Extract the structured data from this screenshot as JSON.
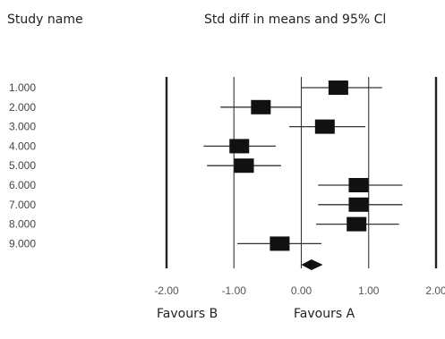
{
  "header": {
    "left": "Study name",
    "right": "Std diff in means and 95% Cl"
  },
  "footer": {
    "left": "Favours B",
    "right": "Favours A"
  },
  "chart_data": {
    "type": "forest",
    "x_ticks": [
      "-2.00",
      "-1.00",
      "0.00",
      "1.00",
      "2.00"
    ],
    "xlim": [
      -2,
      2
    ],
    "reference_lines": [
      -1,
      0,
      1
    ],
    "studies": [
      {
        "label": "1.000",
        "estimate": 0.55,
        "lower": 0.0,
        "upper": 1.2
      },
      {
        "label": "2.000",
        "estimate": -0.6,
        "lower": -1.2,
        "upper": 0.0
      },
      {
        "label": "3.000",
        "estimate": 0.35,
        "lower": -0.18,
        "upper": 0.95
      },
      {
        "label": "4.000",
        "estimate": -0.92,
        "lower": -1.45,
        "upper": -0.38
      },
      {
        "label": "5.000",
        "estimate": -0.85,
        "lower": -1.4,
        "upper": -0.3
      },
      {
        "label": "6.000",
        "estimate": 0.85,
        "lower": 0.25,
        "upper": 1.5
      },
      {
        "label": "7.000",
        "estimate": 0.85,
        "lower": 0.25,
        "upper": 1.5
      },
      {
        "label": "8.000",
        "estimate": 0.82,
        "lower": 0.22,
        "upper": 1.45
      },
      {
        "label": "9.000",
        "estimate": -0.32,
        "lower": -0.95,
        "upper": 0.3
      }
    ],
    "summary": {
      "estimate": 0.15,
      "lower": 0.0,
      "upper": 0.32
    }
  }
}
